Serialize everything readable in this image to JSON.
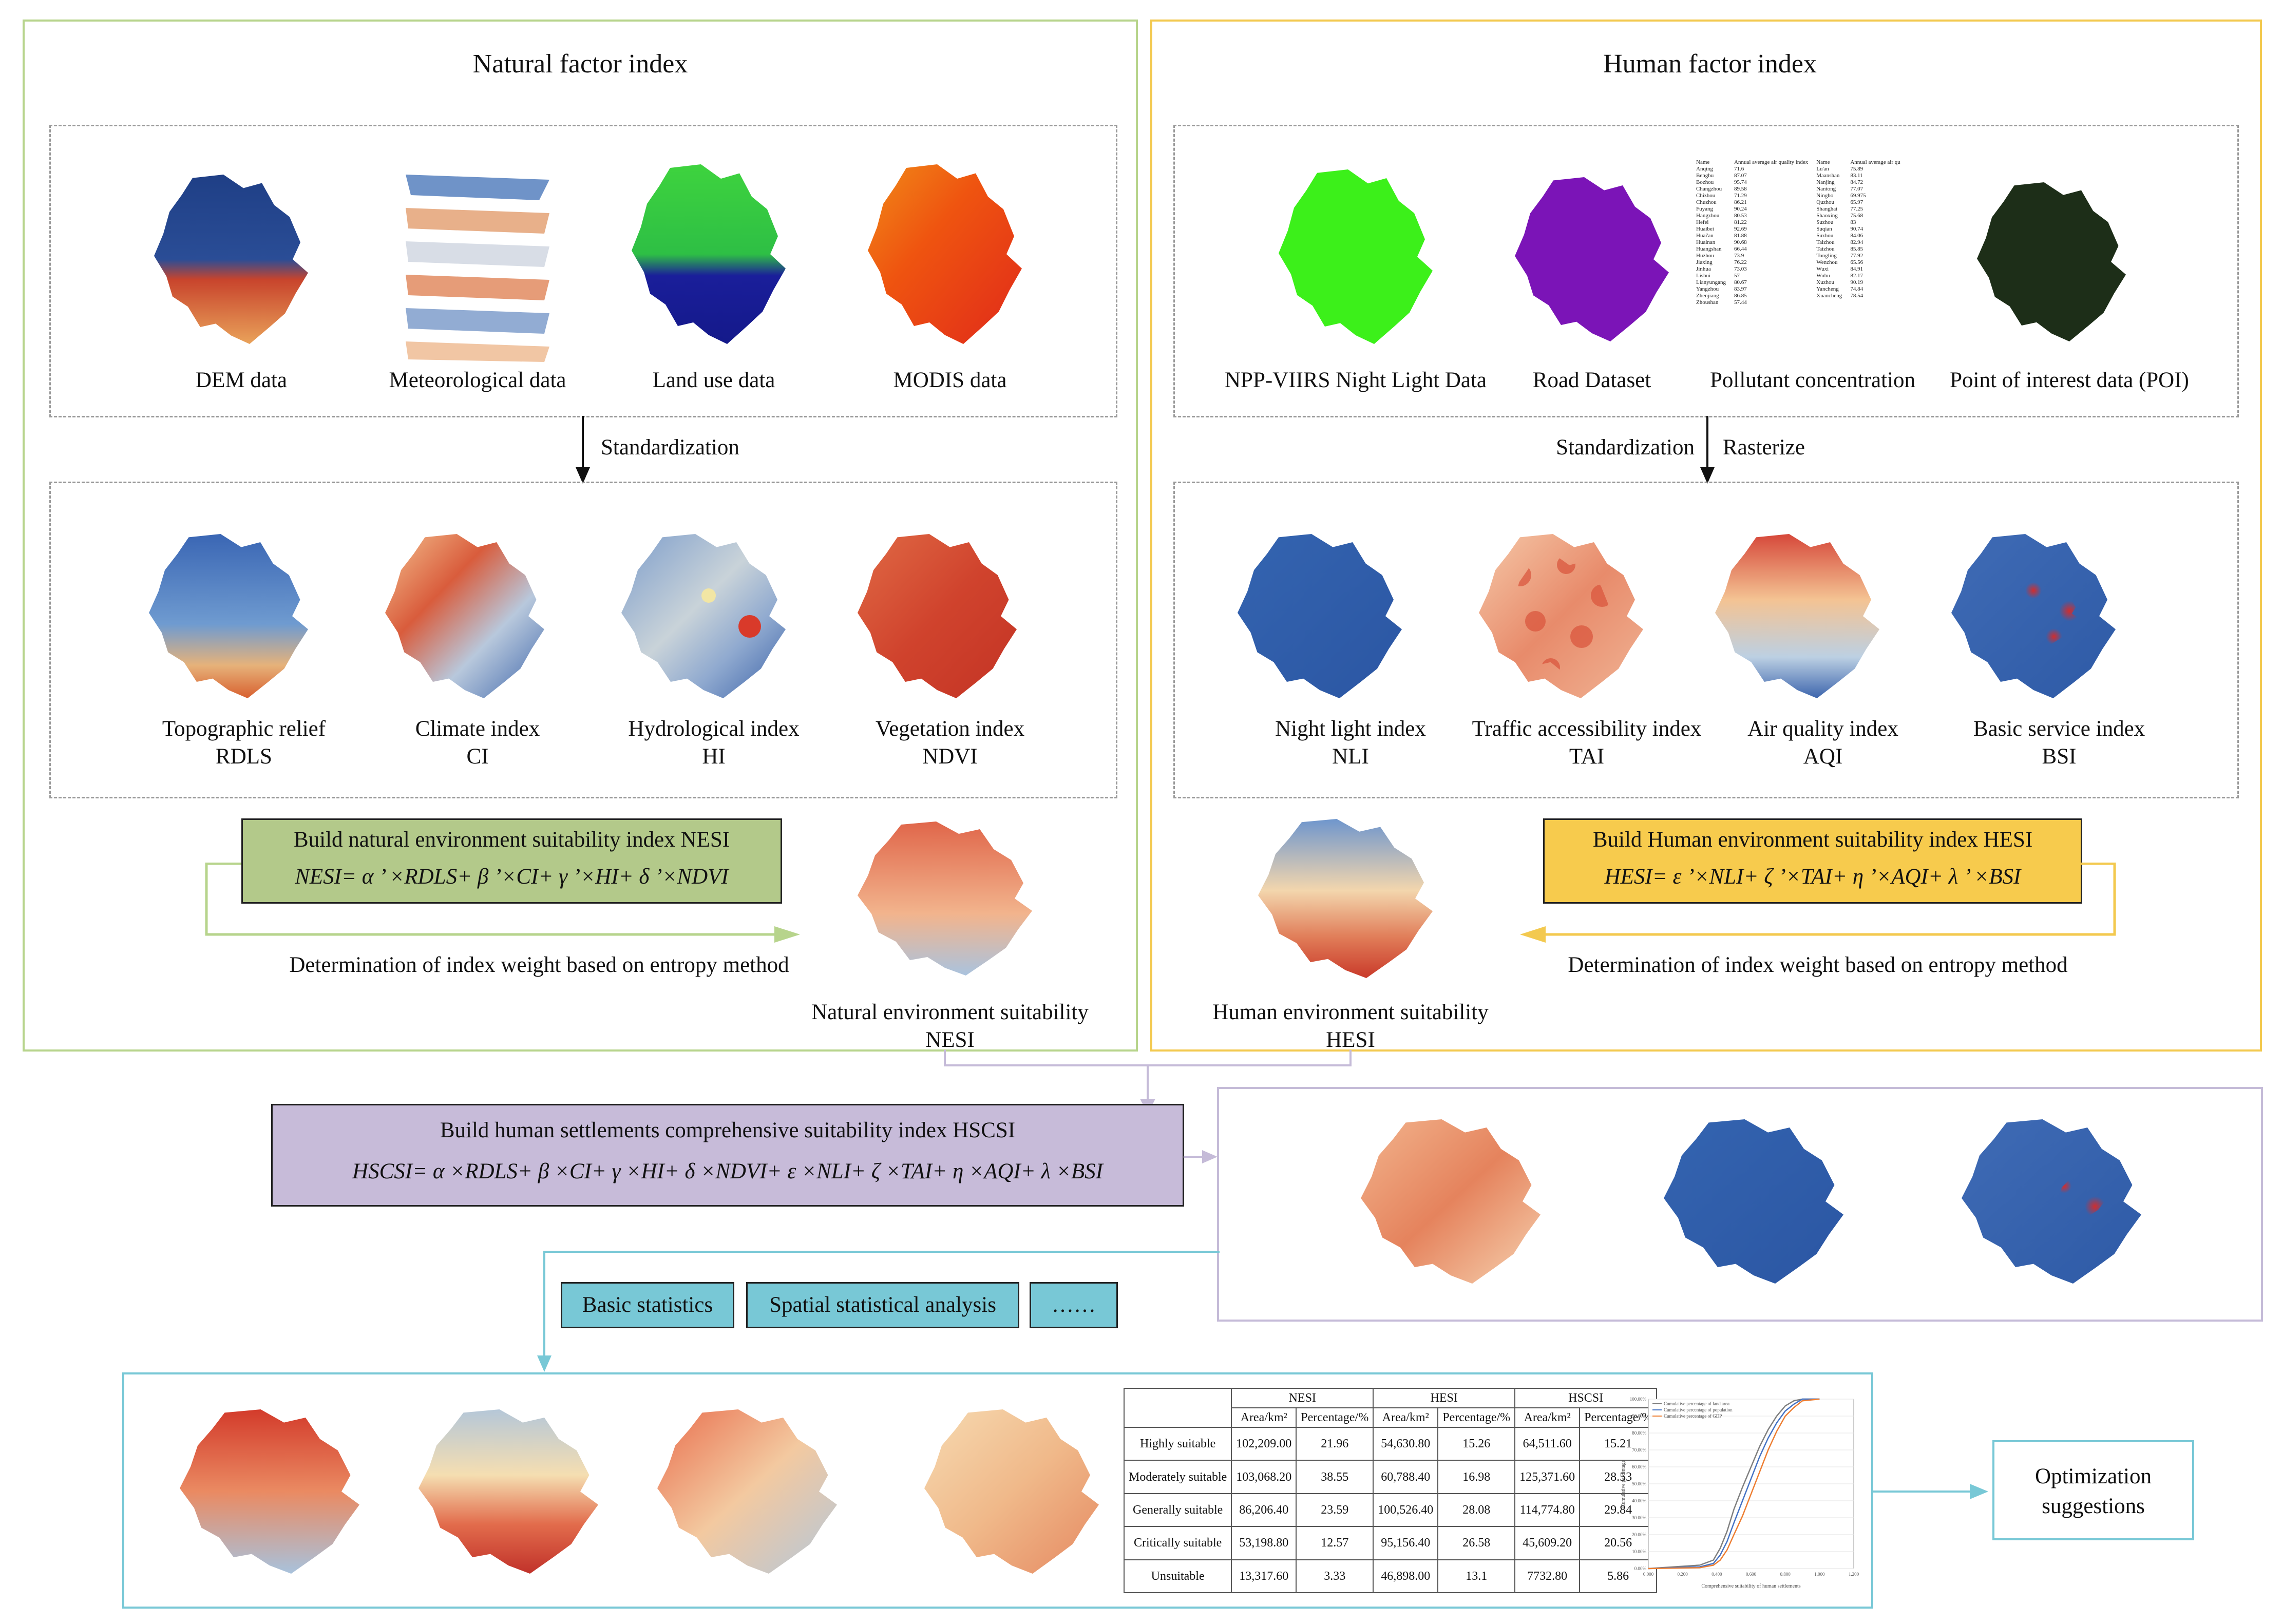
{
  "natural_panel": {
    "title": "Natural factor index",
    "sources": [
      {
        "label": "DEM data"
      },
      {
        "label": "Meteorological data"
      },
      {
        "label": "Land use data"
      },
      {
        "label": "MODIS data"
      }
    ],
    "step_label": "Standardization",
    "indices": [
      {
        "line1": "Topographic relief",
        "line2": "RDLS"
      },
      {
        "line1": "Climate index",
        "line2": "CI"
      },
      {
        "line1": "Hydrological index",
        "line2": "HI"
      },
      {
        "line1": "Vegetation index",
        "line2": "NDVI"
      }
    ],
    "build_title": "Build natural environment suitability index NESI",
    "formula": "NESI= α ’ ×RDLS+ β ’×CI+ γ ’×HI+ δ ’×NDVI",
    "weight_label": "Determination of index weight based on entropy method",
    "result_line1": "Natural environment suitability",
    "result_line2": "NESI"
  },
  "human_panel": {
    "title": "Human factor index",
    "sources": [
      {
        "label": "NPP-VIIRS Night Light Data"
      },
      {
        "label": "Road Dataset"
      },
      {
        "label": "Pollutant concentration"
      },
      {
        "label": "Point of interest data (POI)"
      }
    ],
    "step_label_left": "Standardization",
    "step_label_right": "Rasterize",
    "indices": [
      {
        "line1": "Night light index",
        "line2": "NLI"
      },
      {
        "line1": "Traffic accessibility index",
        "line2": "TAI"
      },
      {
        "line1": "Air quality index",
        "line2": "AQI"
      },
      {
        "line1": "Basic service index",
        "line2": "BSI"
      }
    ],
    "build_title": "Build Human environment suitability index HESI",
    "formula": "HESI= ε ’×NLI+ ζ ’×TAI+ η ’×AQI+ λ ’ ×BSI",
    "weight_label": "Determination of index weight based on entropy method",
    "result_line1": "Human environment suitability",
    "result_line2": "HESI"
  },
  "pollutant_table": {
    "headers": [
      "Name",
      "Annual average air quality index",
      "Name",
      "Annual average air qu"
    ],
    "rows": [
      [
        "Anqing",
        "71.6",
        "Lu'an",
        "75.89"
      ],
      [
        "Bengbu",
        "87.07",
        "Maanshan",
        "83.11"
      ],
      [
        "Bozhou",
        "95.74",
        "Nanjing",
        "84.72"
      ],
      [
        "Changzhou",
        "89.58",
        "Nantong",
        "77.07"
      ],
      [
        "Chizhou",
        "71.29",
        "Ningbo",
        "69.975"
      ],
      [
        "Chuzhou",
        "86.21",
        "Quzhou",
        "65.97"
      ],
      [
        "Fuyang",
        "90.24",
        "Shanghai",
        "77.25"
      ],
      [
        "Hangzhou",
        "80.53",
        "Shaoxing",
        "75.68"
      ],
      [
        "Hefei",
        "81.22",
        "Suzhou",
        "83"
      ],
      [
        "Huaibei",
        "92.69",
        "Suqian",
        "90.74"
      ],
      [
        "Huai'an",
        "81.88",
        "Suzhou",
        "84.06"
      ],
      [
        "Huainan",
        "90.68",
        "Taizhou",
        "82.94"
      ],
      [
        "Huangshan",
        "66.44",
        "Taizhou",
        "85.85"
      ],
      [
        "Huzhou",
        "73.9",
        "Tongling",
        "77.92"
      ],
      [
        "Jiaxing",
        "76.22",
        "Wenzhou",
        "65.56"
      ],
      [
        "Jinhua",
        "73.03",
        "Wuxi",
        "84.91"
      ],
      [
        "Lishui",
        "57",
        "Wuhu",
        "82.17"
      ],
      [
        "Lianyungang",
        "80.67",
        "Xuzhou",
        "90.19"
      ],
      [
        "Yangzhou",
        "83.97",
        "Yancheng",
        "74.84"
      ],
      [
        "Zhenjiang",
        "86.85",
        "Xuancheng",
        "78.54"
      ],
      [
        "Zhoushan",
        "57.44",
        "",
        ""
      ]
    ]
  },
  "hscsi": {
    "build_title": "Build human settlements comprehensive suitability index HSCSI",
    "formula": "HSCSI= α ×RDLS+ β ×CI+ γ ×HI+ δ ×NDVI+ ε ×NLI+ ζ ×TAI+ η ×AQI+ λ ×BSI"
  },
  "analysis_buttons": [
    {
      "label": "Basic statistics"
    },
    {
      "label": "Spatial statistical analysis"
    },
    {
      "label": "……"
    }
  ],
  "results_table": {
    "groups": [
      "NESI",
      "HESI",
      "HSCSI"
    ],
    "subheaders": [
      "Area/km²",
      "Percentage/%",
      "Area/km²",
      "Percentage/%",
      "Area/km²",
      "Percentage/%"
    ],
    "rows": [
      {
        "label": "Highly suitable",
        "values": [
          "102,209.00",
          "21.96",
          "54,630.80",
          "15.26",
          "64,511.60",
          "15.21"
        ]
      },
      {
        "label": "Moderately suitable",
        "values": [
          "103,068.20",
          "38.55",
          "60,788.40",
          "16.98",
          "125,371.60",
          "28.53"
        ]
      },
      {
        "label": "Generally suitable",
        "values": [
          "86,206.40",
          "23.59",
          "100,526.40",
          "28.08",
          "114,774.80",
          "29.84"
        ]
      },
      {
        "label": "Critically suitable",
        "values": [
          "53,198.80",
          "12.57",
          "95,156.40",
          "26.58",
          "45,609.20",
          "20.56"
        ]
      },
      {
        "label": "Unsuitable",
        "values": [
          "13,317.60",
          "3.33",
          "46,898.00",
          "13.1",
          "7732.80",
          "5.86"
        ]
      }
    ]
  },
  "chart_data": {
    "type": "line",
    "title": "",
    "xlabel": "Comprehensive suitability of human settlements",
    "ylabel": "Cumulative percentage",
    "x_ticks": [
      "0.000",
      "0.200",
      "0.400",
      "0.600",
      "0.800",
      "1.000",
      "1.200"
    ],
    "y_ticks": [
      "0.00%",
      "10.00%",
      "20.00%",
      "30.00%",
      "40.00%",
      "50.00%",
      "60.00%",
      "70.00%",
      "80.00%",
      "90.00%",
      "100.00%"
    ],
    "xlim": [
      0,
      1.2
    ],
    "ylim": [
      0,
      100
    ],
    "legend": [
      "Cumulative percentage of land area",
      "Cumulative percentage of population",
      "Cumulative percentage of GDP"
    ],
    "series": [
      {
        "name": "Cumulative percentage of land area",
        "color": "#7f7f7f",
        "x": [
          0.0,
          0.3,
          0.38,
          0.42,
          0.46,
          0.5,
          0.55,
          0.6,
          0.65,
          0.7,
          0.75,
          0.8,
          0.85,
          0.9,
          1.0
        ],
        "y": [
          0,
          2,
          5,
          12,
          22,
          35,
          48,
          60,
          72,
          82,
          90,
          96,
          99,
          100,
          100
        ]
      },
      {
        "name": "Cumulative percentage of population",
        "color": "#4472c4",
        "x": [
          0.0,
          0.3,
          0.38,
          0.42,
          0.46,
          0.5,
          0.55,
          0.6,
          0.65,
          0.7,
          0.75,
          0.8,
          0.85,
          0.9,
          1.0
        ],
        "y": [
          0,
          1,
          3,
          8,
          16,
          27,
          40,
          53,
          66,
          77,
          86,
          93,
          97,
          100,
          100
        ]
      },
      {
        "name": "Cumulative percentage of GDP",
        "color": "#ed7d31",
        "x": [
          0.0,
          0.3,
          0.38,
          0.42,
          0.46,
          0.5,
          0.55,
          0.6,
          0.65,
          0.7,
          0.75,
          0.8,
          0.85,
          0.9,
          1.0
        ],
        "y": [
          0,
          0.5,
          2,
          5,
          11,
          20,
          31,
          44,
          57,
          70,
          81,
          90,
          95,
          99,
          100
        ]
      }
    ]
  },
  "optimization_label_line1": "Optimization",
  "optimization_label_line2": "suggestions",
  "colors": {
    "natural_border": "#b7d48c",
    "human_border": "#f3c94f",
    "hscsi_border": "#c5bbd8",
    "analysis_border": "#78c8d6",
    "natural_box": "#b3c98a",
    "human_box": "#f7cb4d",
    "hscsi_box": "#c7bbd9",
    "button_fill": "#78c8d6"
  }
}
